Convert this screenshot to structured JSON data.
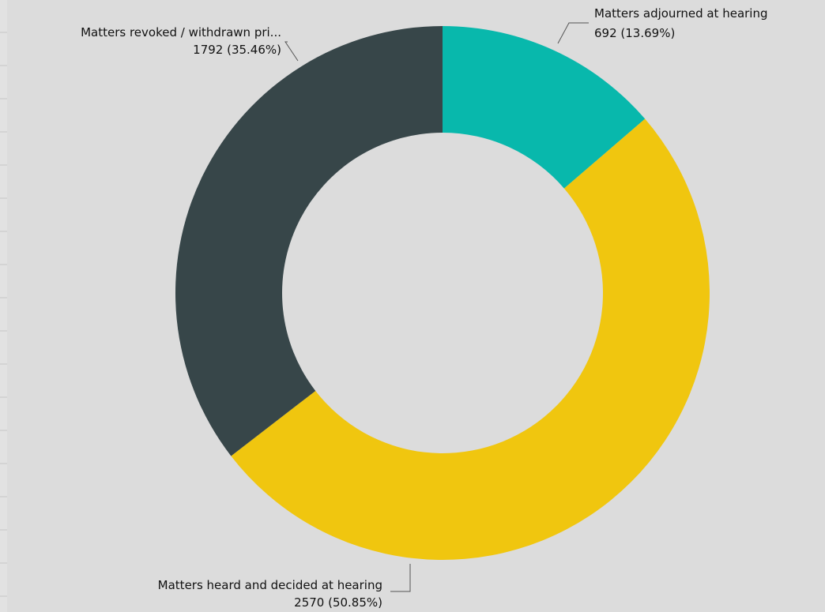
{
  "chart_data": {
    "type": "pie",
    "donut": true,
    "title": "",
    "slices": [
      {
        "label": "Matters adjourned at hearing",
        "value": 692,
        "value_text": "692 (13.69%)",
        "color": "#08b8ac"
      },
      {
        "label": "Matters heard and decided at hearing",
        "value": 2570,
        "value_text": "2570 (50.85%)",
        "color": "#f0c60f"
      },
      {
        "label": "Matters revoked / withdrawn pri...",
        "value": 1792,
        "value_text": "1792 (35.46%)",
        "color": "#374649"
      }
    ]
  },
  "colors": {
    "background": "#dcdcdc",
    "leader": "#555555"
  }
}
